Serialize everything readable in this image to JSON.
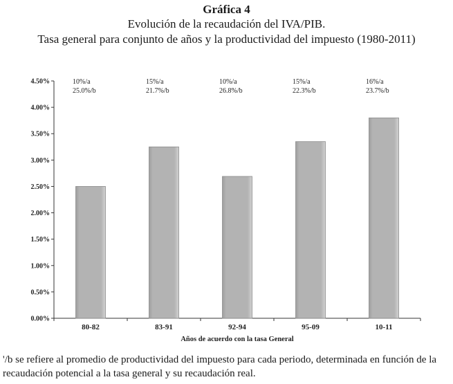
{
  "header": {
    "figure_label": "Gráfica 4",
    "title": "Evolución de la recaudación del IVA/PIB.",
    "subtitle": "Tasa general para conjunto de  años y la productividad del impuesto (1980-2011)"
  },
  "chart_data": {
    "type": "bar",
    "categories": [
      "80-82",
      "83-91",
      "92-94",
      "95-09",
      "10-11"
    ],
    "values": [
      2.5,
      3.25,
      2.69,
      3.35,
      3.8
    ],
    "annotations_a": [
      "10%/a",
      "15%/a",
      "10%/a",
      "15%/a",
      "16%/a"
    ],
    "annotations_b": [
      "25.0%/b",
      "21.7%/b",
      "26.8%/b",
      "22.3%/b",
      "23.7%/b"
    ],
    "xlabel": "Años de acuerdo con la tasa General",
    "ylabel": "",
    "ylim": [
      0,
      4.5
    ],
    "yticks": [
      0,
      0.5,
      1.0,
      1.5,
      2.0,
      2.5,
      3.0,
      3.5,
      4.0,
      4.5
    ],
    "ytick_labels": [
      "0.00%",
      "0.50%",
      "1.00%",
      "1.50%",
      "2.00%",
      "2.50%",
      "3.00%",
      "3.50%",
      "4.00%",
      "4.50%"
    ],
    "grid": false,
    "bar_color": "#b3b3b3"
  },
  "footnote": {
    "text": "'/b se refiere al promedio de productividad del impuesto para cada periodo, determinada en función de la recaudación potencial a la tasa general y su recaudación real."
  }
}
